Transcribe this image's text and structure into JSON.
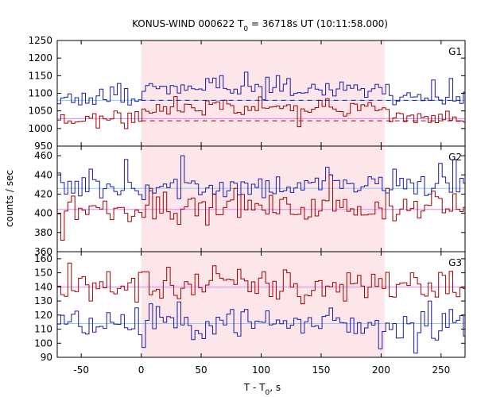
{
  "chart_data": {
    "type": "line",
    "title": "KONUS-WIND 000622 T",
    "title_sub": "0",
    "title_rest": " = 36718s UT (10:11:58.000)",
    "xlabel": "T - T",
    "xlabel_sub": "0",
    "xlabel_rest": ", s",
    "ylabel": "counts / sec",
    "xlim": [
      -70,
      270
    ],
    "x_ticks": [
      -50,
      0,
      50,
      100,
      150,
      200,
      250
    ],
    "highlight_interval": [
      0,
      203
    ],
    "bin_width": 2.944,
    "colors": {
      "top_series": "#1a1aaa",
      "bottom_series": "#a00000",
      "fit_line_top": "#87ceeb",
      "fit_line_bottom": "#ee82ee",
      "highlight": "#fde6ea"
    },
    "panels": [
      {
        "label": "G1",
        "ylim": [
          950,
          1250
        ],
        "y_ticks": [
          950,
          1000,
          1050,
          1100,
          1150,
          1200,
          1250
        ],
        "blue": {
          "mean": 1085,
          "sd": 12,
          "seg_start": 0,
          "seg_end": 205,
          "seg_level": 1110,
          "bg_level": 1080,
          "spikes": [
            [
              -25,
              1118
            ],
            [
              -18,
              1128
            ],
            [
              55,
              1142
            ],
            [
              68,
              1150
            ],
            [
              88,
              1160
            ],
            [
              113,
              1150
            ],
            [
              122,
              1142
            ],
            [
              168,
              1132
            ],
            [
              243,
              1138
            ],
            [
              259,
              1142
            ]
          ]
        },
        "red": {
          "mean": 1028,
          "sd": 11,
          "seg_start": 0,
          "seg_end": 205,
          "seg_level": 1060,
          "bg_level": 1028,
          "spikes": [
            [
              -22,
              1050
            ],
            [
              100,
              1090
            ],
            [
              148,
              1080
            ],
            [
              154,
              1085
            ],
            [
              132,
              1005
            ]
          ]
        },
        "dashed": {
          "blue": 1080,
          "red": 1022
        }
      },
      {
        "label": "G2",
        "ylim": [
          360,
          470
        ],
        "y_ticks": [
          360,
          380,
          400,
          420,
          440,
          460
        ],
        "blue": {
          "mean": 428,
          "sd": 7,
          "seg_start": null,
          "seg_end": null,
          "seg_level": null,
          "bg_level": 426,
          "spikes": [
            [
              -68,
              442
            ],
            [
              -42,
              446
            ],
            [
              -13,
              456
            ],
            [
              35,
              460
            ],
            [
              155,
              448
            ],
            [
              158,
              440
            ],
            [
              162,
              434
            ],
            [
              212,
              446
            ],
            [
              248,
              452
            ],
            [
              260,
              456
            ]
          ]
        },
        "red": {
          "mean": 405,
          "sd": 7,
          "seg_start": null,
          "seg_end": null,
          "seg_level": null,
          "bg_level": 404,
          "spikes": [
            [
              -66,
              372
            ],
            [
              -58,
              418
            ],
            [
              8,
              426
            ],
            [
              21,
              422
            ],
            [
              80,
              426
            ],
            [
              157,
              440
            ],
            [
              206,
              426
            ],
            [
              245,
              423
            ]
          ]
        },
        "dashed": null
      },
      {
        "label": "G3",
        "ylim": [
          90,
          165
        ],
        "y_ticks": [
          90,
          100,
          110,
          120,
          130,
          140,
          150,
          160
        ],
        "blue": {
          "mean": 114,
          "sd": 6,
          "seg_start": null,
          "seg_end": null,
          "seg_level": null,
          "bg_level": 114,
          "spikes": [
            [
              3,
              97
            ],
            [
              9,
              128
            ],
            [
              75,
              124
            ],
            [
              105,
              123
            ],
            [
              158,
              125
            ],
            [
              200,
              96
            ],
            [
              228,
              93
            ],
            [
              240,
              130
            ],
            [
              259,
              124
            ]
          ]
        },
        "red": {
          "mean": 141,
          "sd": 6,
          "seg_start": null,
          "seg_end": null,
          "seg_level": null,
          "bg_level": 140,
          "spikes": [
            [
              -60,
              157
            ],
            [
              -43,
              130
            ],
            [
              18,
              132
            ],
            [
              24,
              154
            ],
            [
              60,
              155
            ],
            [
              123,
              150
            ],
            [
              134,
              128
            ],
            [
              170,
              130
            ],
            [
              173,
              150
            ],
            [
              194,
              149
            ],
            [
              225,
              150
            ]
          ]
        },
        "dashed": null
      }
    ]
  }
}
